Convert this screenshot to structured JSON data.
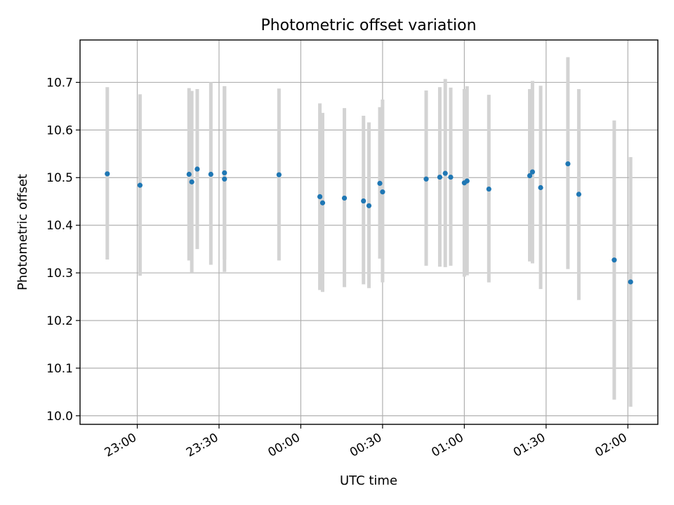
{
  "chart_data": {
    "type": "scatter",
    "title": "Photometric offset variation",
    "xlabel": "UTC time",
    "ylabel": "Photometric offset",
    "xlim": [
      "22:39",
      "02:11"
    ],
    "ylim": [
      9.982,
      10.789
    ],
    "grid": true,
    "colors": {
      "points": "#1f77b4",
      "errorbars": "#d3d3d3",
      "grid": "#b0b0b0"
    },
    "xticks": [
      "23:00",
      "23:30",
      "00:00",
      "00:30",
      "01:00",
      "01:30",
      "02:00"
    ],
    "yticks": [
      "10.0",
      "10.1",
      "10.2",
      "10.3",
      "10.4",
      "10.5",
      "10.6",
      "10.7"
    ],
    "points": [
      {
        "t": "22:49",
        "y": 10.508,
        "lo": 10.328,
        "hi": 10.69
      },
      {
        "t": "23:01",
        "y": 10.484,
        "lo": 10.294,
        "hi": 10.675
      },
      {
        "t": "23:19",
        "y": 10.507,
        "lo": 10.326,
        "hi": 10.688
      },
      {
        "t": "23:20",
        "y": 10.491,
        "lo": 10.3,
        "hi": 10.682
      },
      {
        "t": "23:22",
        "y": 10.518,
        "lo": 10.35,
        "hi": 10.686
      },
      {
        "t": "23:27",
        "y": 10.507,
        "lo": 10.317,
        "hi": 10.7
      },
      {
        "t": "23:32",
        "y": 10.497,
        "lo": 10.302,
        "hi": 10.692
      },
      {
        "t": "23:32",
        "y": 10.51,
        "lo": 10.328,
        "hi": 10.692
      },
      {
        "t": "23:52",
        "y": 10.506,
        "lo": 10.326,
        "hi": 10.687
      },
      {
        "t": "00:07",
        "y": 10.46,
        "lo": 10.264,
        "hi": 10.656
      },
      {
        "t": "00:08",
        "y": 10.447,
        "lo": 10.26,
        "hi": 10.636
      },
      {
        "t": "00:16",
        "y": 10.457,
        "lo": 10.27,
        "hi": 10.646
      },
      {
        "t": "00:23",
        "y": 10.451,
        "lo": 10.276,
        "hi": 10.63
      },
      {
        "t": "00:25",
        "y": 10.441,
        "lo": 10.268,
        "hi": 10.616
      },
      {
        "t": "00:29",
        "y": 10.488,
        "lo": 10.33,
        "hi": 10.648
      },
      {
        "t": "00:30",
        "y": 10.47,
        "lo": 10.28,
        "hi": 10.664
      },
      {
        "t": "00:46",
        "y": 10.497,
        "lo": 10.315,
        "hi": 10.683
      },
      {
        "t": "00:51",
        "y": 10.501,
        "lo": 10.313,
        "hi": 10.69
      },
      {
        "t": "00:53",
        "y": 10.509,
        "lo": 10.312,
        "hi": 10.707
      },
      {
        "t": "00:55",
        "y": 10.501,
        "lo": 10.315,
        "hi": 10.689
      },
      {
        "t": "01:00",
        "y": 10.489,
        "lo": 10.292,
        "hi": 10.686
      },
      {
        "t": "01:01",
        "y": 10.493,
        "lo": 10.295,
        "hi": 10.692
      },
      {
        "t": "01:09",
        "y": 10.476,
        "lo": 10.28,
        "hi": 10.674
      },
      {
        "t": "01:24",
        "y": 10.504,
        "lo": 10.324,
        "hi": 10.686
      },
      {
        "t": "01:25",
        "y": 10.512,
        "lo": 10.32,
        "hi": 10.703
      },
      {
        "t": "01:28",
        "y": 10.479,
        "lo": 10.266,
        "hi": 10.693
      },
      {
        "t": "01:38",
        "y": 10.529,
        "lo": 10.308,
        "hi": 10.753
      },
      {
        "t": "01:42",
        "y": 10.465,
        "lo": 10.243,
        "hi": 10.686
      },
      {
        "t": "01:55",
        "y": 10.327,
        "lo": 10.034,
        "hi": 10.62
      },
      {
        "t": "02:01",
        "y": 10.281,
        "lo": 10.019,
        "hi": 10.543
      }
    ]
  }
}
